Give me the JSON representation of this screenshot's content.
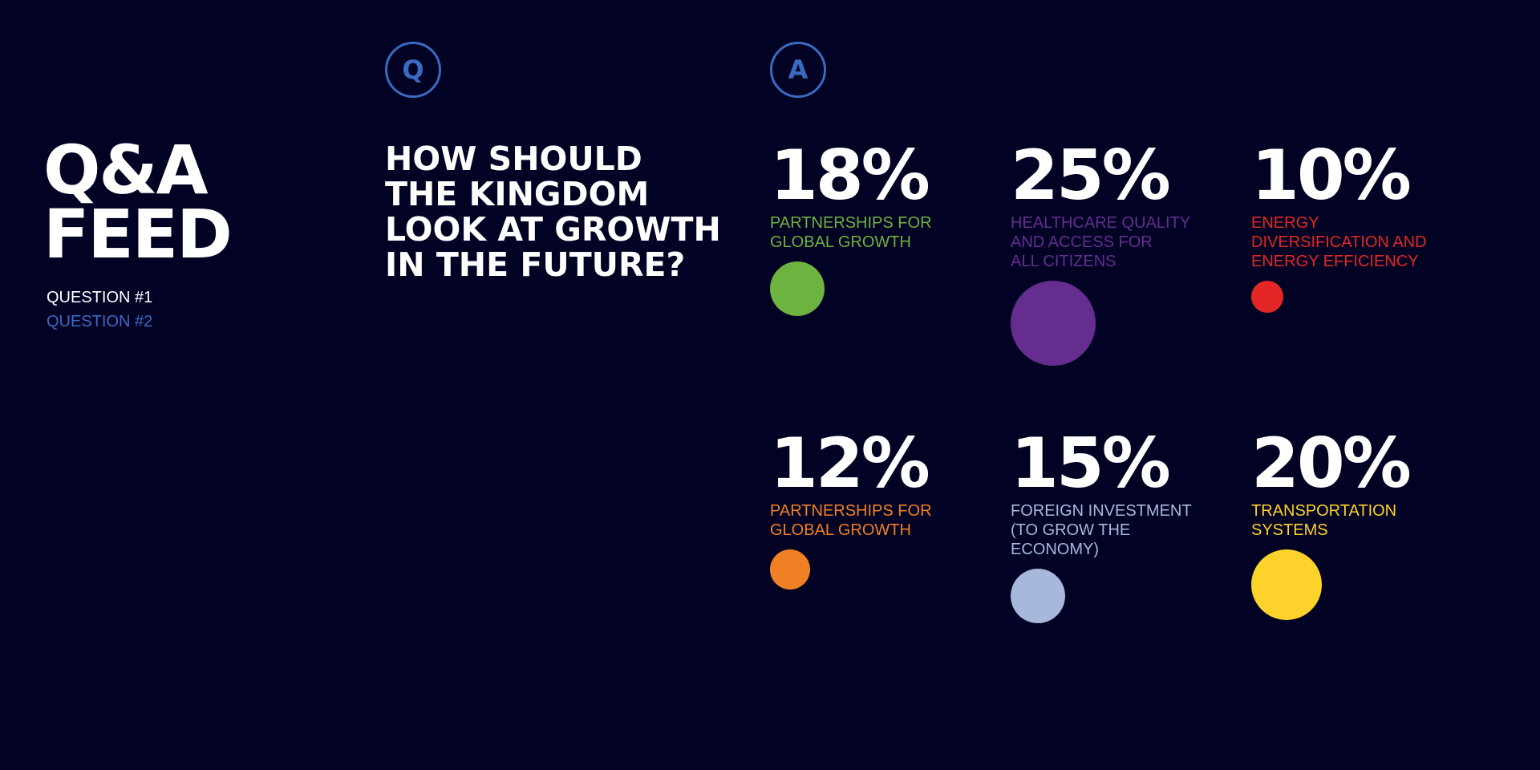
{
  "sidebar": {
    "title_lines": [
      "Q&A",
      "FEED"
    ],
    "questions": [
      {
        "label": "QUESTION #1",
        "color": "#ffffff",
        "active": true
      },
      {
        "label": "QUESTION #2",
        "color": "#3a6bc1",
        "active": false
      }
    ]
  },
  "question_badge": "Q",
  "answer_badge": "A",
  "badge_color": "#3a6bc1",
  "question_lines": [
    "HOW SHOULD",
    "THE KINGDOM",
    "LOOK AT GROWTH",
    "IN THE FUTURE?"
  ],
  "answers": [
    {
      "percent": "18%",
      "label_lines": [
        "PARTNERSHIPS FOR",
        "GLOBAL GROWTH"
      ],
      "color": "#6db33f"
    },
    {
      "percent": "25%",
      "label_lines": [
        "HEALTHCARE QUALITY",
        "AND ACCESS FOR",
        "ALL CITIZENS"
      ],
      "color": "#662d91"
    },
    {
      "percent": "10%",
      "label_lines": [
        "ENERGY",
        "DIVERSIFICATION AND",
        "ENERGY EFFICIENCY"
      ],
      "color": "#e32726"
    },
    {
      "percent": "12%",
      "label_lines": [
        "PARTNERSHIPS FOR",
        "GLOBAL GROWTH"
      ],
      "color": "#f08024"
    },
    {
      "percent": "15%",
      "label_lines": [
        "FOREIGN INVESTMENT",
        "(TO GROW THE",
        "ECONOMY)"
      ],
      "color": "#a8b8dc"
    },
    {
      "percent": "20%",
      "label_lines": [
        "TRANSPORTATION",
        "SYSTEMS"
      ],
      "color": "#fdd22a"
    }
  ]
}
